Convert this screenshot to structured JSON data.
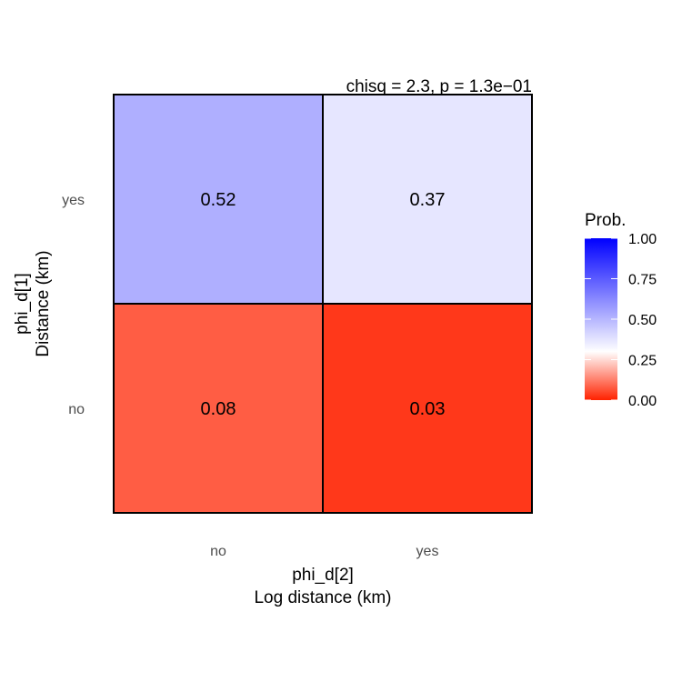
{
  "chart_data": {
    "type": "heatmap",
    "subtitle": "chisq = 2.3, p = 1.3e−01",
    "x_categories": [
      "no",
      "yes"
    ],
    "y_categories": [
      "no",
      "yes"
    ],
    "xlabel_lines": [
      "phi_d[2]",
      "Log distance (km)"
    ],
    "ylabel_lines": [
      "phi_d[1]",
      "Distance (km)"
    ],
    "cells": [
      {
        "x": "no",
        "y": "yes",
        "value": 0.52,
        "label": "0.52"
      },
      {
        "x": "yes",
        "y": "yes",
        "value": 0.37,
        "label": "0.37"
      },
      {
        "x": "no",
        "y": "no",
        "value": 0.08,
        "label": "0.08"
      },
      {
        "x": "yes",
        "y": "no",
        "value": 0.03,
        "label": "0.03"
      }
    ],
    "legend": {
      "title": "Prob.",
      "ticks": [
        {
          "value": 1.0,
          "label": "1.00"
        },
        {
          "value": 0.75,
          "label": "0.75"
        },
        {
          "value": 0.5,
          "label": "0.50"
        },
        {
          "value": 0.25,
          "label": "0.25"
        },
        {
          "value": 0.0,
          "label": "0.00"
        }
      ],
      "range": [
        0,
        1
      ],
      "placement": "right"
    },
    "colors": {
      "low": "#ff2200",
      "mid": "#ffffff",
      "high": "#0000ff",
      "midpoint": 0.3,
      "cell_border": "#000000"
    },
    "grid": false
  }
}
